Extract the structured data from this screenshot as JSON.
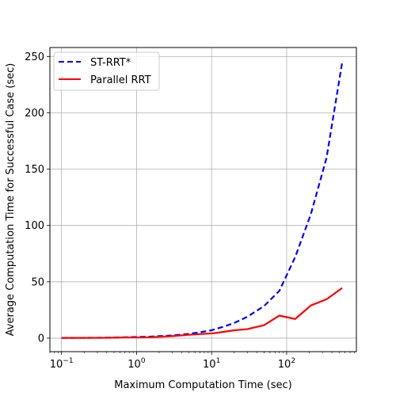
{
  "chart_data": {
    "type": "line",
    "xlabel": "Maximum Computation Time (sec)",
    "ylabel": "Average Computation Time for Successful Case (sec)",
    "xscale": "log",
    "xlim": [
      0.07,
      850
    ],
    "ylim": [
      -12,
      258
    ],
    "grid": true,
    "legend_position": "top-left",
    "x_ticks": [
      {
        "value": 0.1,
        "base": "10",
        "exp": "−1"
      },
      {
        "value": 1,
        "base": "10",
        "exp": "0"
      },
      {
        "value": 10,
        "base": "10",
        "exp": "1"
      },
      {
        "value": 100,
        "base": "10",
        "exp": "2"
      }
    ],
    "y_ticks": [
      {
        "value": 0,
        "label": "0"
      },
      {
        "value": 50,
        "label": "50"
      },
      {
        "value": 100,
        "label": "100"
      },
      {
        "value": 150,
        "label": "150"
      },
      {
        "value": 200,
        "label": "200"
      },
      {
        "value": 250,
        "label": "250"
      }
    ],
    "series": [
      {
        "name": "ST-RRT*",
        "color": "#0000ff",
        "style": "dashed",
        "x": [
          0.1,
          0.2,
          0.4,
          0.7,
          1,
          1.5,
          2,
          3,
          5,
          7,
          10,
          15,
          20,
          30,
          50,
          80,
          130,
          210,
          340,
          550
        ],
        "y": [
          0.2,
          0.3,
          0.4,
          0.8,
          1.0,
          1.3,
          1.8,
          2.4,
          3.8,
          5.2,
          7.0,
          10.5,
          13.5,
          19.0,
          28.5,
          42.0,
          72.0,
          110.0,
          160.0,
          245.0
        ]
      },
      {
        "name": "Parallel RRT",
        "color": "#ff0000",
        "style": "solid",
        "x": [
          0.1,
          0.2,
          0.4,
          0.7,
          1,
          1.5,
          2,
          3,
          5,
          7,
          10,
          12,
          20,
          30,
          50,
          80,
          130,
          210,
          340,
          550
        ],
        "y": [
          0.2,
          0.2,
          0.3,
          0.6,
          0.6,
          0.8,
          1.2,
          1.8,
          3.0,
          3.6,
          4.2,
          4.8,
          7.0,
          8.0,
          11.5,
          20.0,
          17.0,
          29.0,
          34.5,
          44.5
        ]
      }
    ]
  }
}
